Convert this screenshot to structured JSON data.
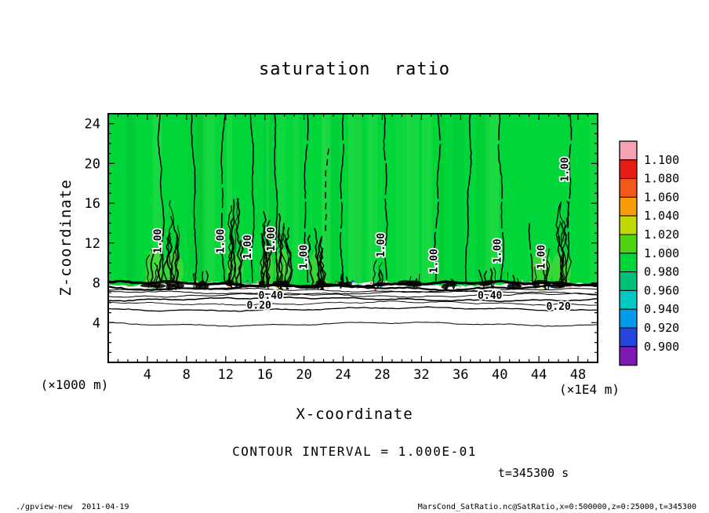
{
  "title": "saturation ratio",
  "axes": {
    "x_label": "X-coordinate",
    "y_label": "Z-coordinate",
    "x_unit": "(×1E4 m)",
    "y_unit": "(×1000 m)",
    "x_ticks": [
      4,
      8,
      12,
      16,
      20,
      24,
      28,
      32,
      36,
      40,
      44,
      48
    ],
    "y_ticks": [
      4,
      8,
      12,
      16,
      20,
      24
    ],
    "x_range": [
      0,
      50
    ],
    "y_range": [
      0,
      25
    ]
  },
  "colorbar": {
    "labels": [
      "1.100",
      "1.080",
      "1.060",
      "1.040",
      "1.020",
      "1.000",
      "0.980",
      "0.960",
      "0.940",
      "0.920",
      "0.900"
    ],
    "colors": [
      "#f4a2b4",
      "#e81c14",
      "#f2581a",
      "#f79c05",
      "#c3d904",
      "#4ed411",
      "#00d539",
      "#00bf77",
      "#00c9c4",
      "#009cec",
      "#2546dd",
      "#7d18b4"
    ]
  },
  "annotations": {
    "contour_interval": "CONTOUR INTERVAL = 1.000E-01",
    "time": "t=345300 s"
  },
  "footer": {
    "left": "./gpview-new  2011-04-19",
    "right": "MarsCond_SatRatio.nc@SatRatio,x=0:500000,z=0:25000,t=345300"
  },
  "chart_data": {
    "type": "heatmap",
    "subtype": "filled contours + line contours of saturation ratio on x-z plane",
    "title": "saturation ratio",
    "xlabel": "X-coordinate (×1E4 m)",
    "ylabel": "Z-coordinate (×1000 m)",
    "xlim": [
      0,
      50
    ],
    "ylim": [
      0,
      25
    ],
    "contour_interval": 0.1,
    "fill_levels": [
      0.9,
      0.92,
      0.94,
      0.96,
      0.98,
      1.0,
      1.02,
      1.04,
      1.06,
      1.08,
      1.1
    ],
    "time_s": 345300,
    "field_description": [
      "Above z≈8 (×1000 m) the whole domain is near saturation ratio 1.00 (solid green fill) with near-vertical 1.00 contour lines",
      "Sharp transition band at z≈7–8 where contours 0.5–0.9 bunch into a dark layer with small pockets of super/sub-saturation (red/orange/blue specks)",
      "Below the band the air is subsaturated: 0.40 contour near z≈6.3, 0.20 contour near z≈5.3, 0.10 near z≈3.9",
      "Convective plume-like clusters of dense contours rise from the band to z≈12–17 at several x locations"
    ],
    "subsat_contours": [
      {
        "level": 0.9,
        "z": 7.85,
        "w": 3.2
      },
      {
        "level": 0.8,
        "z": 7.55,
        "w": 2.2
      },
      {
        "level": 0.7,
        "z": 7.25,
        "w": 1.0
      },
      {
        "level": 0.6,
        "z": 7.0,
        "w": 1.0
      },
      {
        "level": 0.5,
        "z": 6.75,
        "w": 1.0
      },
      {
        "level": 0.4,
        "z": 6.35,
        "w": 1.5
      },
      {
        "level": 0.3,
        "z": 5.95,
        "w": 0.9
      },
      {
        "level": 0.2,
        "z": 5.35,
        "w": 1.3
      },
      {
        "level": 0.1,
        "z": 3.85,
        "w": 1.0
      }
    ],
    "sat_one_contours": [
      {
        "x": 5.4
      },
      {
        "x": 8.7
      },
      {
        "x": 11.8
      },
      {
        "x": 14.6
      },
      {
        "x": 17.0
      },
      {
        "x": 20.3
      },
      {
        "x": 24.0
      },
      {
        "x": 28.2
      },
      {
        "x": 33.6
      },
      {
        "x": 36.8
      },
      {
        "x": 40.1
      },
      {
        "x": 47.0
      },
      {
        "x": 43.2,
        "z0": 8,
        "z1": 14
      },
      {
        "x": 22.3,
        "z0": 13,
        "z1": 21.5,
        "dash": "8 6"
      }
    ],
    "updraft_plumes": [
      {
        "x": 4.6,
        "top": 12
      },
      {
        "x": 6.6,
        "top": 16.5
      },
      {
        "x": 9.3,
        "top": 10
      },
      {
        "x": 13.0,
        "top": 17
      },
      {
        "x": 16.2,
        "top": 16
      },
      {
        "x": 17.9,
        "top": 17.5
      },
      {
        "x": 21.3,
        "top": 14
      },
      {
        "x": 24.3,
        "top": 9.5
      },
      {
        "x": 27.6,
        "top": 10.5
      },
      {
        "x": 30.8,
        "top": 9.5
      },
      {
        "x": 35.0,
        "top": 9.0
      },
      {
        "x": 38.8,
        "top": 10
      },
      {
        "x": 41.5,
        "top": 9.5
      },
      {
        "x": 44.3,
        "top": 12.5
      },
      {
        "x": 46.3,
        "top": 17
      }
    ],
    "contour_labels": [
      {
        "text": "1.00",
        "x": 5.4,
        "z": 12.2,
        "rot": -90
      },
      {
        "text": "1.00",
        "x": 11.8,
        "z": 12.2,
        "rot": -90
      },
      {
        "text": "1.00",
        "x": 14.6,
        "z": 11.6,
        "rot": -90
      },
      {
        "text": "1.00",
        "x": 17.0,
        "z": 12.4,
        "rot": -90
      },
      {
        "text": "1.00",
        "x": 20.3,
        "z": 10.6,
        "rot": -90
      },
      {
        "text": "1.00",
        "x": 28.2,
        "z": 11.8,
        "rot": -90
      },
      {
        "text": "1.00",
        "x": 33.6,
        "z": 10.2,
        "rot": -90
      },
      {
        "text": "1.00",
        "x": 40.1,
        "z": 11.2,
        "rot": -90
      },
      {
        "text": "1.00",
        "x": 44.6,
        "z": 10.6,
        "rot": -90
      },
      {
        "text": "1.00",
        "x": 47.0,
        "z": 19.4,
        "rot": -90
      },
      {
        "text": "0.40",
        "x": 16.6,
        "z": 6.4,
        "rot": 0
      },
      {
        "text": "0.40",
        "x": 39.0,
        "z": 6.4,
        "rot": 0
      },
      {
        "text": "0.20",
        "x": 15.4,
        "z": 5.4,
        "rot": 0
      },
      {
        "text": "0.20",
        "x": 46.0,
        "z": 5.3,
        "rot": 0
      }
    ]
  }
}
